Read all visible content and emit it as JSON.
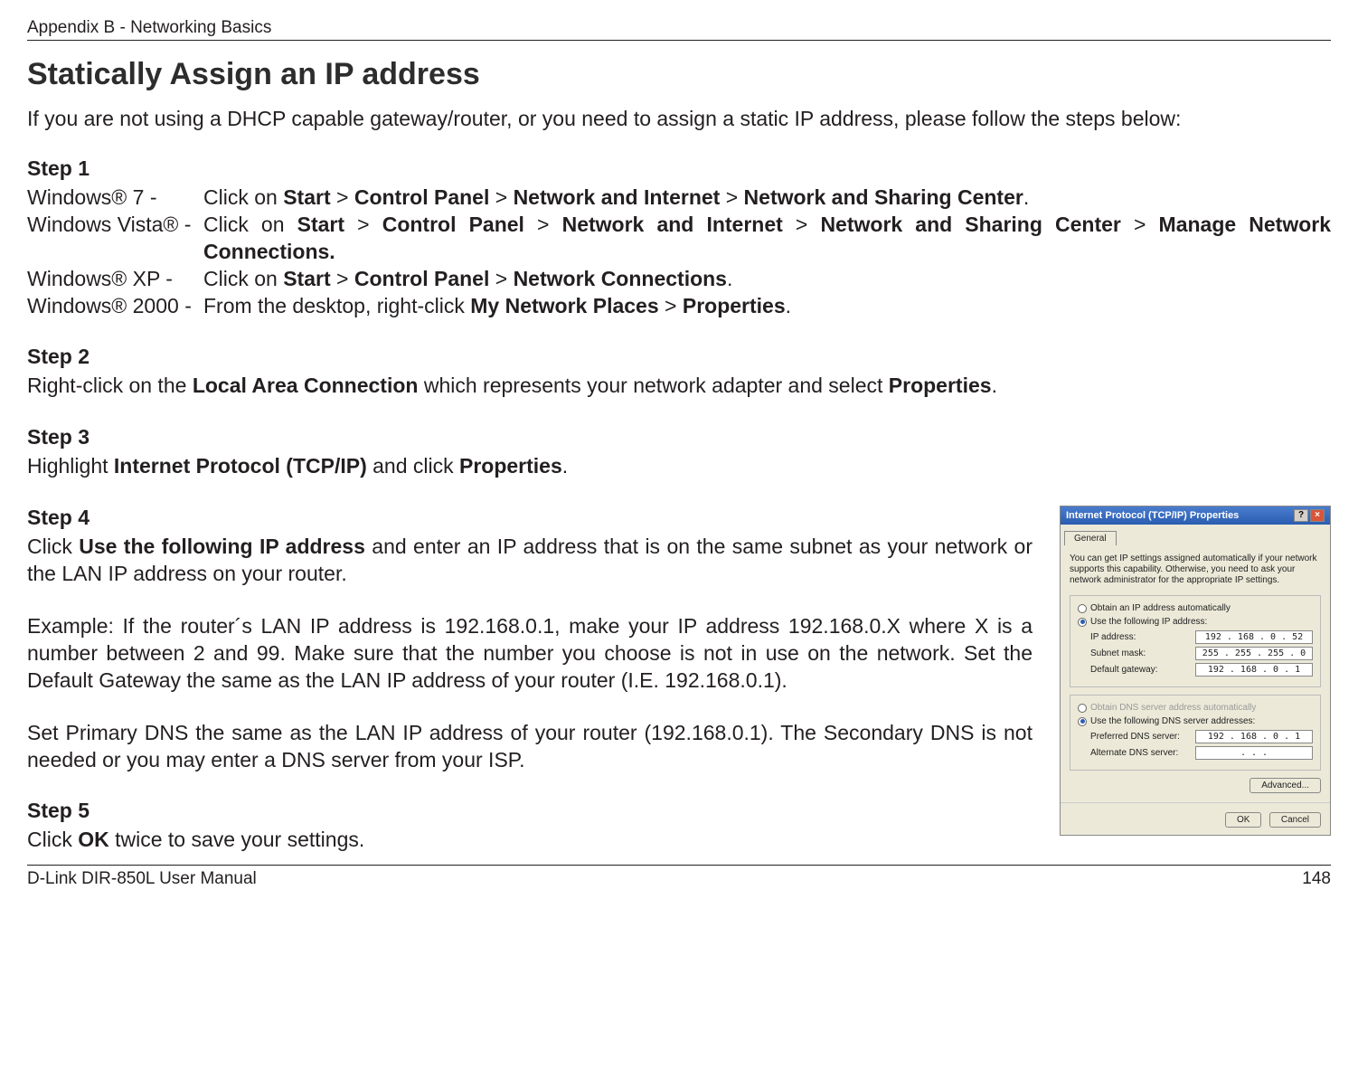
{
  "header": {
    "appendix": "Appendix B - Networking Basics"
  },
  "title": "Statically Assign an IP address",
  "intro": "If you are not using a DHCP capable gateway/router, or you need to assign a static IP address, please follow the steps below:",
  "steps": {
    "step1": {
      "heading": "Step 1",
      "rows": [
        {
          "os": "Windows® 7 -",
          "pre": "Click on ",
          "b1": "Start",
          "s1": " > ",
          "b2": "Control Panel",
          "s2": " > ",
          "b3": "Network and Internet",
          "s3": " > ",
          "b4": "Network and Sharing Center",
          "post": "."
        },
        {
          "os": "Windows Vista® -",
          "pre": "Click on ",
          "b1": "Start",
          "s1": " > ",
          "b2": "Control Panel",
          "s2": " > ",
          "b3": "Network and Internet",
          "s3": " > ",
          "b4": "Network and Sharing Center",
          "s4": " > ",
          "b5": "Manage Network Connections.",
          "post": ""
        },
        {
          "os": "Windows® XP -",
          "pre": "Click on ",
          "b1": "Start",
          "s1": " > ",
          "b2": "Control Panel",
          "s2": " > ",
          "b3": "Network Connections",
          "post": "."
        },
        {
          "os": "Windows® 2000 -",
          "pre": "From the desktop, right-click ",
          "b1": "My Network Places",
          "s1": " > ",
          "b2": "Properties",
          "post": "."
        }
      ]
    },
    "step2": {
      "heading": "Step 2",
      "pre": "Right-click on the ",
      "b1": "Local Area Connection",
      "mid": " which represents your network adapter and select ",
      "b2": "Properties",
      "post": "."
    },
    "step3": {
      "heading": "Step 3",
      "pre": "Highlight ",
      "b1": "Internet Protocol (TCP/IP)",
      "mid": " and click ",
      "b2": "Properties",
      "post": "."
    },
    "step4": {
      "heading": "Step 4",
      "p1_pre": "Click ",
      "p1_b1": "Use the following IP address",
      "p1_post": " and enter an IP address that is on the same subnet as your network or the LAN IP address on your router.",
      "p2": "Example: If the router´s LAN IP address is 192.168.0.1, make your IP address 192.168.0.X where X is a number between 2 and 99. Make sure that the number you choose is not in use on the network. Set the Default Gateway the same as the LAN IP address of your router (I.E. 192.168.0.1).",
      "p3": "Set Primary DNS the same as the LAN IP address of your router (192.168.0.1). The Secondary DNS is not needed or you may enter a DNS server from your ISP."
    },
    "step5": {
      "heading": "Step 5",
      "pre": "Click ",
      "b1": "OK",
      "post": " twice to save your settings."
    }
  },
  "dialog": {
    "title": "Internet Protocol (TCP/IP) Properties",
    "tab": "General",
    "desc": "You can get IP settings assigned automatically if your network supports this capability. Otherwise, you need to ask your network administrator for the appropriate IP settings.",
    "radio_auto_ip": "Obtain an IP address automatically",
    "radio_use_ip": "Use the following IP address:",
    "ip_label": "IP address:",
    "ip_value": "192 . 168 .  0  .  52",
    "subnet_label": "Subnet mask:",
    "subnet_value": "255 . 255 . 255 .  0",
    "gateway_label": "Default gateway:",
    "gateway_value": "192 . 168 .  0  .   1",
    "radio_auto_dns": "Obtain DNS server address automatically",
    "radio_use_dns": "Use the following DNS server addresses:",
    "pref_dns_label": "Preferred DNS server:",
    "pref_dns_value": "192 . 168 .  0  .   1",
    "alt_dns_label": "Alternate DNS server:",
    "alt_dns_value": " .       .       . ",
    "advanced": "Advanced...",
    "ok": "OK",
    "cancel": "Cancel"
  },
  "footer": {
    "manual": "D-Link DIR-850L User Manual",
    "page": "148"
  }
}
